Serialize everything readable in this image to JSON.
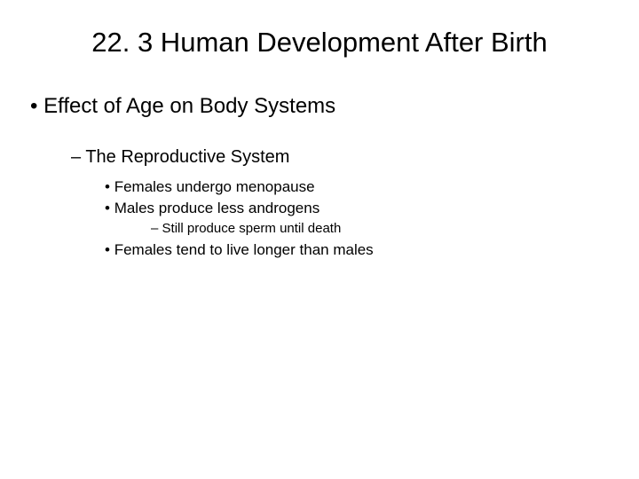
{
  "slide": {
    "title": "22. 3  Human Development After Birth",
    "level1": "Effect of Age on Body Systems",
    "level2": "The Reproductive System",
    "level3a": "Females undergo menopause",
    "level3b": "Males produce less androgens",
    "level4": "Still produce sperm until death",
    "level3c": "Females tend to live longer than males"
  },
  "style": {
    "background_color": "#ffffff",
    "text_color": "#000000",
    "font_family": "Arial",
    "title_fontsize": 31,
    "l1_fontsize": 24,
    "l2_fontsize": 20,
    "l3_fontsize": 17,
    "l4_fontsize": 15,
    "l1_bullet": "disc",
    "l2_bullet": "dash",
    "l3_bullet": "disc",
    "l4_bullet": "dash",
    "indent_l1": 14,
    "indent_l2": 60,
    "indent_l3": 98,
    "indent_l4": 150
  }
}
